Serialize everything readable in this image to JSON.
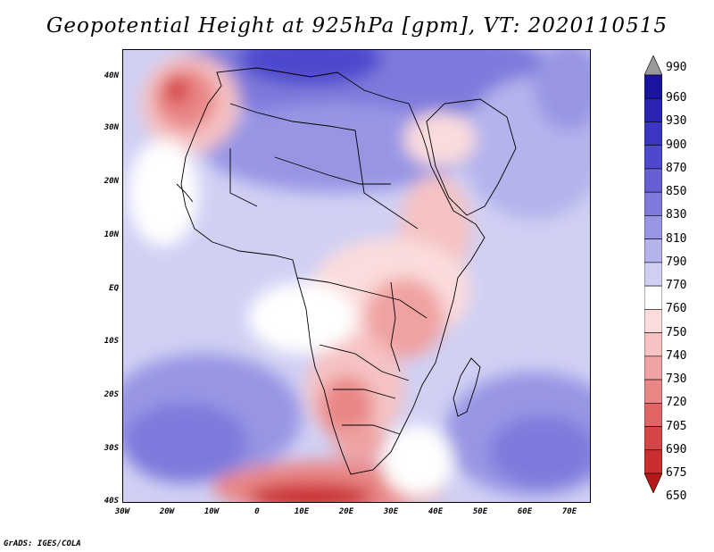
{
  "title": "Geopotential Height at 925hPa [gpm], VT: 2020110515",
  "footer": "GrADS: IGES/COLA",
  "lat_labels": [
    "40N",
    "30N",
    "20N",
    "10N",
    "EQ",
    "10S",
    "20S",
    "30S",
    "40S"
  ],
  "lon_labels": [
    "30W",
    "20W",
    "10W",
    "0",
    "10E",
    "20E",
    "30E",
    "40E",
    "50E",
    "60E",
    "70E"
  ],
  "colorbar": {
    "labels": [
      "990",
      "960",
      "930",
      "900",
      "870",
      "850",
      "830",
      "810",
      "790",
      "770",
      "760",
      "750",
      "740",
      "730",
      "720",
      "705",
      "690",
      "675",
      "650"
    ],
    "colors": [
      "#9a9a9a",
      "#1a14a0",
      "#2a23b4",
      "#3c36c4",
      "#4e49cc",
      "#6561d4",
      "#7d7adc",
      "#9896e4",
      "#b4b3ec",
      "#d0d0f4",
      "#ffffff",
      "#fbdcdc",
      "#f6c2c2",
      "#f0a2a2",
      "#e98686",
      "#e06464",
      "#d64646",
      "#ca2e2e",
      "#b61818"
    ]
  },
  "units": "gpm",
  "valid_time": "2020110515",
  "level": "925hPa"
}
